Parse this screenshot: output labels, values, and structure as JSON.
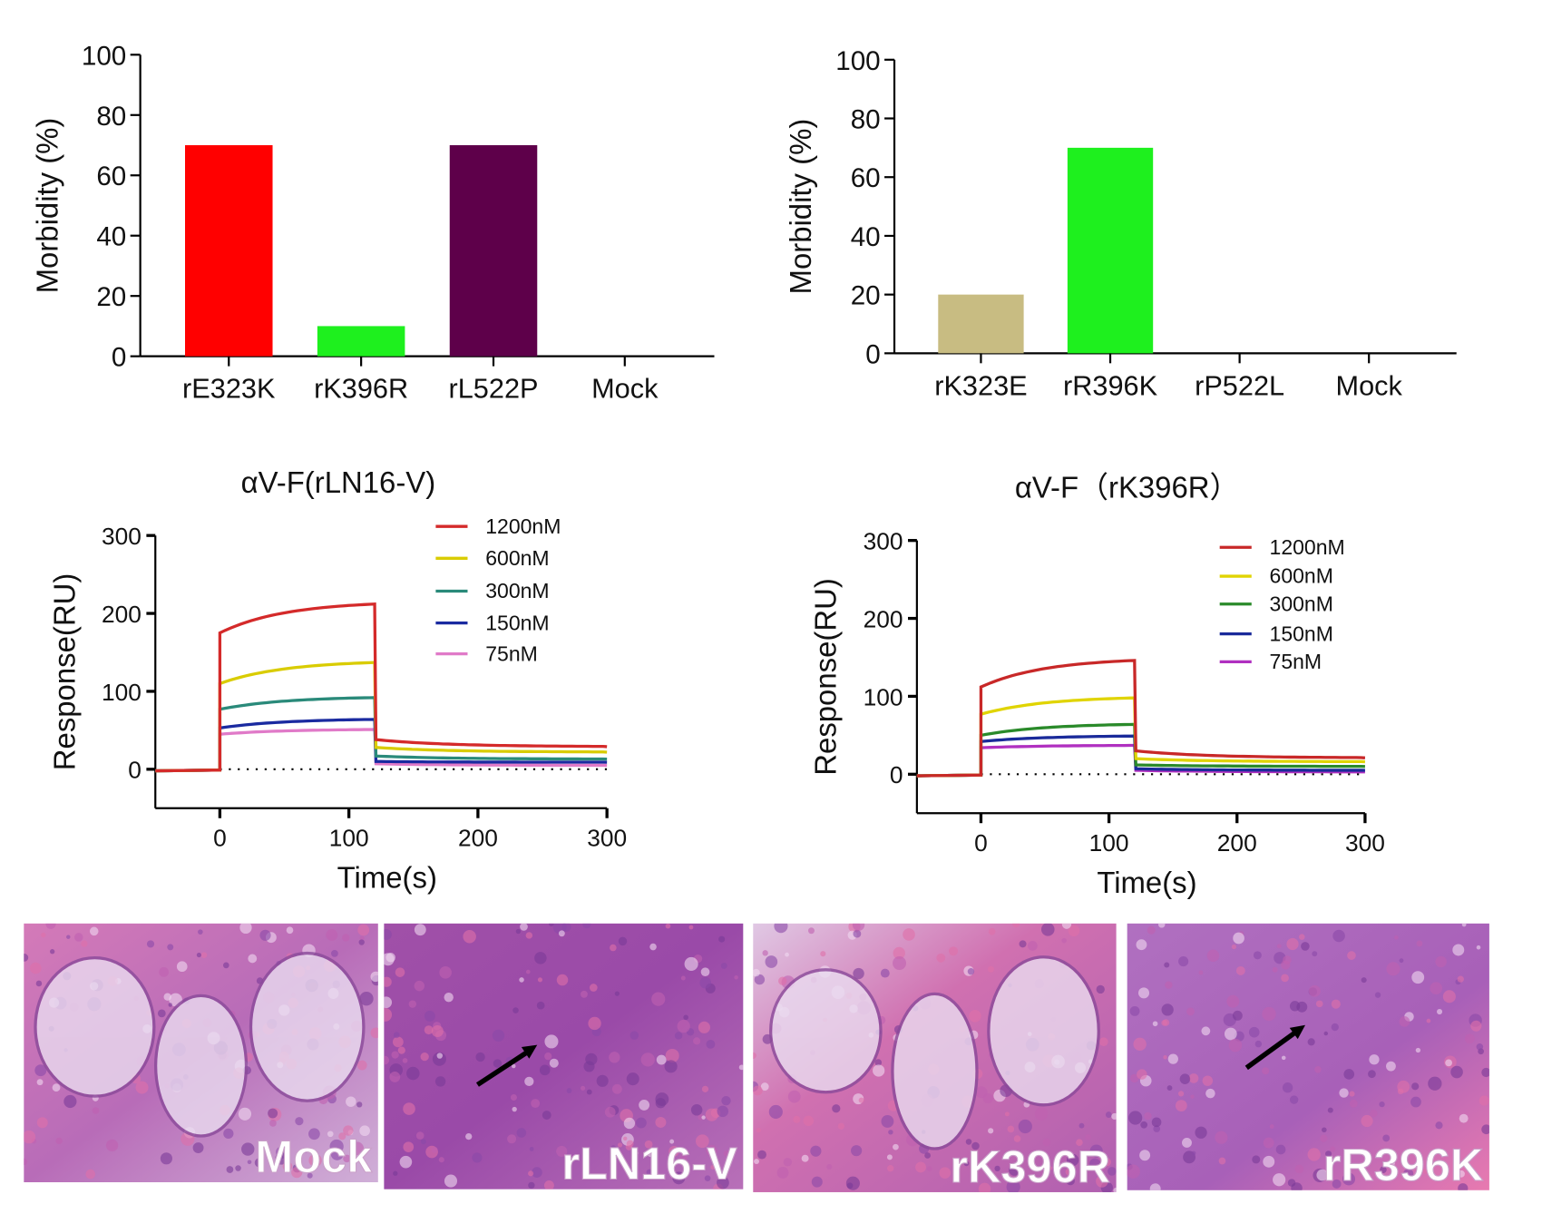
{
  "chart_data": [
    {
      "type": "bar",
      "ylabel": "Morbidity (%)",
      "ylim": [
        0,
        100
      ],
      "yticks": [
        0,
        20,
        40,
        60,
        80,
        100
      ],
      "categories": [
        "rE323K",
        "rK396R",
        "rL522P",
        "Mock"
      ],
      "values": [
        70,
        10,
        70,
        0
      ],
      "colors": [
        "#ff0000",
        "#1ef01e",
        "#5e004a",
        "#000000"
      ],
      "grid": false
    },
    {
      "type": "bar",
      "ylabel": "Morbidity (%)",
      "ylim": [
        0,
        100
      ],
      "yticks": [
        0,
        20,
        40,
        60,
        80,
        100
      ],
      "categories": [
        "rK323E",
        "rR396K",
        "rP522L",
        "Mock"
      ],
      "values": [
        20,
        70,
        0,
        0
      ],
      "colors": [
        "#c8bc82",
        "#1ef01e",
        "#000000",
        "#000000"
      ],
      "grid": false
    },
    {
      "type": "line",
      "title": "αV-F(rLN16-V)",
      "xlabel": "Time(s)",
      "ylabel": "Response(RU)",
      "xlim": [
        -50,
        300
      ],
      "ylim": [
        -50,
        300
      ],
      "xticks": [
        0,
        100,
        200,
        300
      ],
      "yticks": [
        0,
        100,
        200,
        300
      ],
      "legend": "top-right",
      "grid": false,
      "association_end_s": 120,
      "series": [
        {
          "name": "1200nM",
          "color": "#d42a2a",
          "association": [
            175,
            212
          ],
          "dissociation": [
            38,
            29
          ]
        },
        {
          "name": "600nM",
          "color": "#d9cc00",
          "association": [
            110,
            137
          ],
          "dissociation": [
            28,
            22
          ]
        },
        {
          "name": "300nM",
          "color": "#2a8a7a",
          "association": [
            77,
            92
          ],
          "dissociation": [
            17,
            13
          ]
        },
        {
          "name": "150nM",
          "color": "#1a2aa0",
          "association": [
            53,
            64
          ],
          "dissociation": [
            10,
            9
          ]
        },
        {
          "name": "75nM",
          "color": "#e07ac8",
          "association": [
            45,
            51
          ],
          "dissociation": [
            7,
            5
          ]
        }
      ]
    },
    {
      "type": "line",
      "title": "αV-F（rK396R）",
      "xlabel": "Time(s)",
      "ylabel": "Response(RU)",
      "xlim": [
        -50,
        300
      ],
      "ylim": [
        -50,
        300
      ],
      "xticks": [
        0,
        100,
        200,
        300
      ],
      "yticks": [
        0,
        100,
        200,
        300
      ],
      "legend": "top-right",
      "grid": false,
      "association_end_s": 120,
      "series": [
        {
          "name": "1200nM",
          "color": "#c82828",
          "association": [
            112,
            146
          ],
          "dissociation": [
            30,
            21
          ]
        },
        {
          "name": "600nM",
          "color": "#e0d400",
          "association": [
            77,
            98
          ],
          "dissociation": [
            20,
            16
          ]
        },
        {
          "name": "300nM",
          "color": "#2a8a2a",
          "association": [
            50,
            64
          ],
          "dissociation": [
            12,
            10
          ]
        },
        {
          "name": "150nM",
          "color": "#1a2a9a",
          "association": [
            42,
            49
          ],
          "dissociation": [
            7,
            5
          ]
        },
        {
          "name": "75nM",
          "color": "#b030c0",
          "association": [
            34,
            37
          ],
          "dissociation": [
            5,
            3
          ]
        }
      ]
    }
  ],
  "histology": {
    "panels": [
      {
        "label": "Mock",
        "arrow": false
      },
      {
        "label": "rLN16-V",
        "arrow": true
      },
      {
        "label": "rK396R",
        "arrow": false
      },
      {
        "label": "rR396K",
        "arrow": true
      }
    ]
  }
}
